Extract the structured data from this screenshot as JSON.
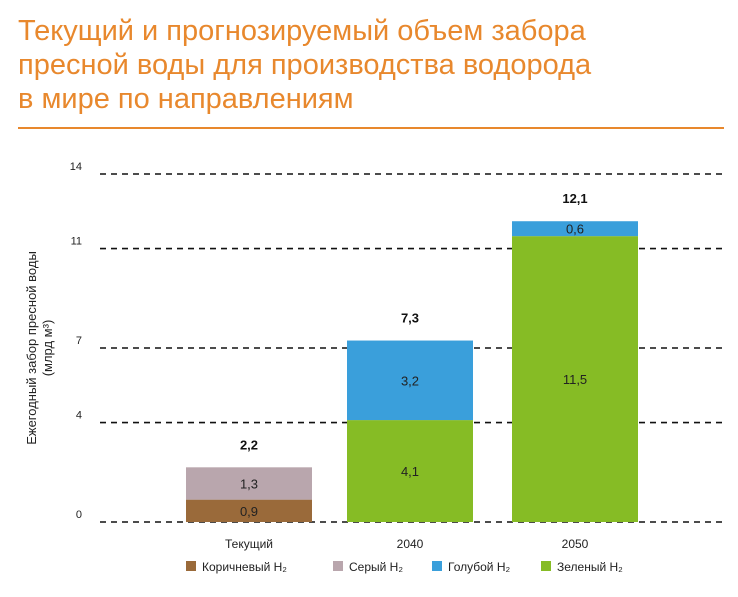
{
  "title_lines": [
    "Текущий и прогнозируемый объем забора",
    "пресной воды для производства водорода",
    "в мире по направлениям"
  ],
  "colors": {
    "title": "#e8882d",
    "brown": "#9a6a3a",
    "gray": "#b9a6ad",
    "blue": "#3a9fdb",
    "green": "#86bc25"
  },
  "chart_data": {
    "type": "bar",
    "stacked": true,
    "ylabel_lines": [
      "Ежегодный забор пресной воды",
      "(млрд м³)"
    ],
    "ylim": [
      0,
      14
    ],
    "yticks": [
      0,
      4,
      7,
      11,
      14
    ],
    "grid": true,
    "categories": [
      "Текущий",
      "2040",
      "2050"
    ],
    "series": [
      {
        "name": "Коричневый H₂",
        "color": "#9a6a3a",
        "values": [
          0.9,
          0,
          0
        ],
        "labels": [
          "0,9",
          "",
          ""
        ]
      },
      {
        "name": "Серый H₂",
        "color": "#b9a6ad",
        "values": [
          1.3,
          0,
          0
        ],
        "labels": [
          "1,3",
          "",
          ""
        ]
      },
      {
        "name": "Зеленый H₂",
        "color": "#86bc25",
        "values": [
          0,
          4.1,
          11.5
        ],
        "labels": [
          "",
          "4,1",
          "11,5"
        ]
      },
      {
        "name": "Голубой H₂",
        "color": "#3a9fdb",
        "values": [
          0,
          3.2,
          0.6
        ],
        "labels": [
          "",
          "3,2",
          "0,6"
        ]
      }
    ],
    "totals": [
      "2,2",
      "7,3",
      "12,1"
    ],
    "legend": [
      {
        "name": "Коричневый H₂",
        "color": "#9a6a3a"
      },
      {
        "name": "Серый H₂",
        "color": "#b9a6ad"
      },
      {
        "name": "Голубой H₂",
        "color": "#3a9fdb"
      },
      {
        "name": "Зеленый H₂",
        "color": "#86bc25"
      }
    ],
    "legend_position": "bottom"
  }
}
